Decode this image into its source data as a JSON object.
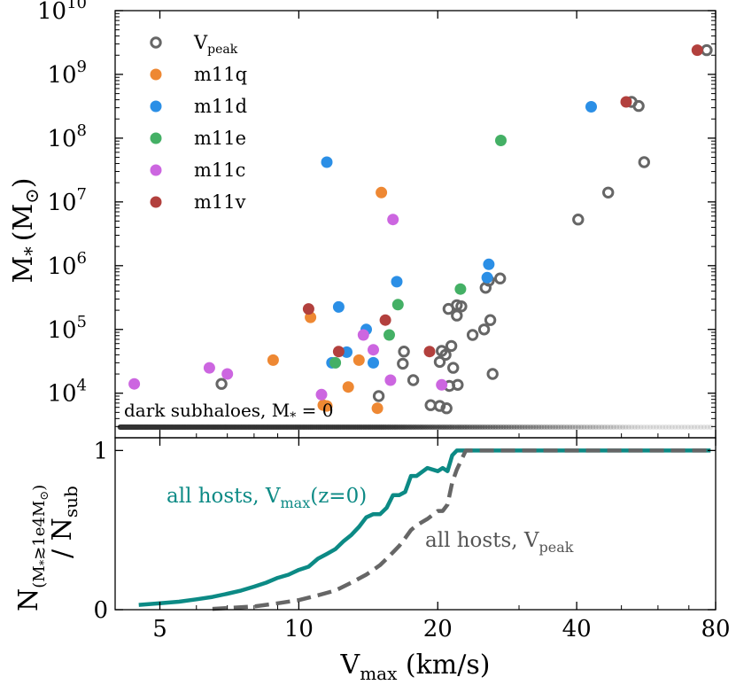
{
  "colors": {
    "vpeak": "#666666",
    "m11q": "#ee8833",
    "m11d": "#2b8fe6",
    "m11e": "#44b065",
    "m11c": "#cc66e0",
    "m11v": "#b2403d",
    "teal": "#0c8a85",
    "gray_line": "#666666",
    "dark_dots": "#333333"
  },
  "chart_data": [
    {
      "type": "scatter",
      "ylabel": "M",
      "ylabel_sub": "*",
      "ylabel_unit": "(M",
      "ylabel_unit_sub": "⊙",
      "ylabel_close": ")",
      "xscale": "log",
      "yscale": "log",
      "xlim": [
        4,
        80
      ],
      "ylim": [
        2000,
        10000000000
      ],
      "yticks": [
        {
          "value": 10000,
          "base": "10",
          "exp": "4"
        },
        {
          "value": 100000,
          "base": "10",
          "exp": "5"
        },
        {
          "value": 1000000,
          "base": "10",
          "exp": "6"
        },
        {
          "value": 10000000,
          "base": "10",
          "exp": "7"
        },
        {
          "value": 100000000,
          "base": "10",
          "exp": "8"
        },
        {
          "value": 1000000000,
          "base": "10",
          "exp": "9"
        },
        {
          "value": 10000000000,
          "base": "10",
          "exp": "10"
        }
      ],
      "legend_position": "top-left",
      "legend": [
        {
          "key": "vpeak",
          "label": "V",
          "sub": "peak",
          "marker": "ring"
        },
        {
          "key": "m11q",
          "label": "m11q",
          "sub": "",
          "marker": "dot"
        },
        {
          "key": "m11d",
          "label": "m11d",
          "sub": "",
          "marker": "dot"
        },
        {
          "key": "m11e",
          "label": "m11e",
          "sub": "",
          "marker": "dot"
        },
        {
          "key": "m11c",
          "label": "m11c",
          "sub": "",
          "marker": "dot"
        },
        {
          "key": "m11v",
          "label": "m11v",
          "sub": "",
          "marker": "dot"
        }
      ],
      "annotation": {
        "text": "dark subhaloes, M",
        "sub": "*",
        "tail": " = 0"
      },
      "series": [
        {
          "name": "Vpeak",
          "marker": "ring",
          "color_key": "vpeak",
          "points": [
            [
              6.8,
              14000
            ],
            [
              14.9,
              9000
            ],
            [
              16.9,
              45000
            ],
            [
              16.8,
              29000
            ],
            [
              17.7,
              16000
            ],
            [
              19.3,
              6500
            ],
            [
              20.2,
              6300
            ],
            [
              20.9,
              5800
            ],
            [
              20.4,
              46000
            ],
            [
              20.2,
              31000
            ],
            [
              20.8,
              40000
            ],
            [
              21.2,
              13000
            ],
            [
              21.6,
              25000
            ],
            [
              21.4,
              55000
            ],
            [
              22.1,
              13500
            ],
            [
              21.1,
              210000
            ],
            [
              22.0,
              240000
            ],
            [
              22.5,
              230000
            ],
            [
              22.0,
              165000
            ],
            [
              23.8,
              82000
            ],
            [
              25.2,
              100000
            ],
            [
              26.0,
              140000
            ],
            [
              26.3,
              20000
            ],
            [
              25.4,
              450000
            ],
            [
              25.8,
              580000
            ],
            [
              27.3,
              630000
            ],
            [
              40.3,
              5300000
            ],
            [
              46.8,
              14000000
            ],
            [
              56.0,
              42000000
            ],
            [
              52.6,
              370000000
            ],
            [
              54.5,
              320000000
            ],
            [
              76.5,
              2400000000
            ]
          ]
        },
        {
          "name": "m11q",
          "marker": "dot",
          "color_key": "m11q",
          "points": [
            [
              8.8,
              33000
            ],
            [
              10.6,
              155000
            ],
            [
              11.3,
              6500
            ],
            [
              11.5,
              6300
            ],
            [
              12.8,
              12500
            ],
            [
              13.5,
              33000
            ],
            [
              14.8,
              5800
            ],
            [
              15.1,
              14000000
            ]
          ]
        },
        {
          "name": "m11d",
          "marker": "dot",
          "color_key": "m11d",
          "points": [
            [
              11.5,
              42000000
            ],
            [
              11.8,
              30000
            ],
            [
              12.2,
              225000
            ],
            [
              12.7,
              44000
            ],
            [
              14.5,
              30000
            ],
            [
              14.0,
              100000
            ],
            [
              16.3,
              560000
            ],
            [
              25.8,
              1050000
            ],
            [
              25.6,
              650000
            ],
            [
              43.0,
              310000000
            ]
          ]
        },
        {
          "name": "m11e",
          "marker": "dot",
          "color_key": "m11e",
          "points": [
            [
              12.0,
              30000
            ],
            [
              15.7,
              82000
            ],
            [
              16.4,
              245000
            ],
            [
              22.4,
              430000
            ],
            [
              27.4,
              92000000
            ]
          ]
        },
        {
          "name": "m11c",
          "marker": "dot",
          "color_key": "m11c",
          "points": [
            [
              4.4,
              14000
            ],
            [
              6.4,
              25000
            ],
            [
              7.0,
              20000
            ],
            [
              11.2,
              9500
            ],
            [
              13.8,
              82000
            ],
            [
              14.5,
              48000
            ],
            [
              15.8,
              16000
            ],
            [
              16.0,
              5300000
            ],
            [
              20.4,
              13500
            ]
          ]
        },
        {
          "name": "m11v",
          "marker": "dot",
          "color_key": "m11v",
          "points": [
            [
              10.5,
              210000
            ],
            [
              12.2,
              45000
            ],
            [
              15.4,
              140000
            ],
            [
              19.2,
              45000
            ],
            [
              51.2,
              370000000
            ],
            [
              73.0,
              2400000000
            ]
          ]
        }
      ]
    },
    {
      "type": "line",
      "xlabel": "V",
      "xlabel_sub": "max",
      "xlabel_unit": " (km/s)",
      "ylabel": "N",
      "ylabel_sub": "(M",
      "ylabel_sub2": "*",
      "ylabel_sub3": "≳1e4M",
      "ylabel_sub4": "⊙",
      "ylabel_sub5": ")",
      "ylabel_line2": "/ N",
      "ylabel_line2_sub": "sub",
      "xscale": "log",
      "xlim": [
        4,
        80
      ],
      "ylim": [
        0,
        1.08
      ],
      "xticks": [
        {
          "value": 5,
          "label": "5"
        },
        {
          "value": 10,
          "label": "10"
        },
        {
          "value": 20,
          "label": "20"
        },
        {
          "value": 40,
          "label": "40"
        },
        {
          "value": 80,
          "label": "80"
        }
      ],
      "yticks": [
        {
          "value": 0,
          "label": "0"
        },
        {
          "value": 1,
          "label": "1"
        }
      ],
      "series": [
        {
          "name": "all hosts, Vmax(z=0)",
          "label": "all hosts, V",
          "label_sub": "max",
          "label_tail": "(z=0)",
          "style": "solid",
          "color_key": "teal",
          "x": [
            4.5,
            5.0,
            5.5,
            6.0,
            6.5,
            7.0,
            7.5,
            8.0,
            8.5,
            9.0,
            9.5,
            10.0,
            10.5,
            11.0,
            11.5,
            12.0,
            12.5,
            13.0,
            13.5,
            14.0,
            14.5,
            15.0,
            15.5,
            16.0,
            16.5,
            17.0,
            17.5,
            18.0,
            19.0,
            20.0,
            20.5,
            21.0,
            21.5,
            22.0,
            24.0,
            30.0,
            40.0,
            60.0,
            78.0
          ],
          "y": [
            0.03,
            0.04,
            0.05,
            0.065,
            0.08,
            0.1,
            0.12,
            0.145,
            0.17,
            0.2,
            0.22,
            0.25,
            0.27,
            0.32,
            0.35,
            0.38,
            0.43,
            0.47,
            0.52,
            0.58,
            0.6,
            0.6,
            0.64,
            0.72,
            0.72,
            0.74,
            0.84,
            0.84,
            0.89,
            0.87,
            0.89,
            0.87,
            0.97,
            1.0,
            1.0,
            1.0,
            1.0,
            1.0,
            1.0
          ]
        },
        {
          "name": "all hosts, Vpeak",
          "label": "all hosts, V",
          "label_sub": "peak",
          "label_tail": "",
          "style": "dashed",
          "color_key": "gray_line",
          "x": [
            6.5,
            8.0,
            9.0,
            10.0,
            11.0,
            12.0,
            13.0,
            14.0,
            14.5,
            15.0,
            15.5,
            16.0,
            16.5,
            17.0,
            17.5,
            18.0,
            19.0,
            20.0,
            20.5,
            21.0,
            21.5,
            22.0,
            23.0,
            30.0,
            40.0,
            60.0,
            78.0
          ],
          "y": [
            0.005,
            0.02,
            0.04,
            0.06,
            0.09,
            0.12,
            0.17,
            0.22,
            0.25,
            0.28,
            0.32,
            0.36,
            0.4,
            0.45,
            0.5,
            0.53,
            0.57,
            0.62,
            0.62,
            0.66,
            0.8,
            0.88,
            1.0,
            1.0,
            1.0,
            1.0,
            1.0
          ]
        }
      ]
    }
  ]
}
